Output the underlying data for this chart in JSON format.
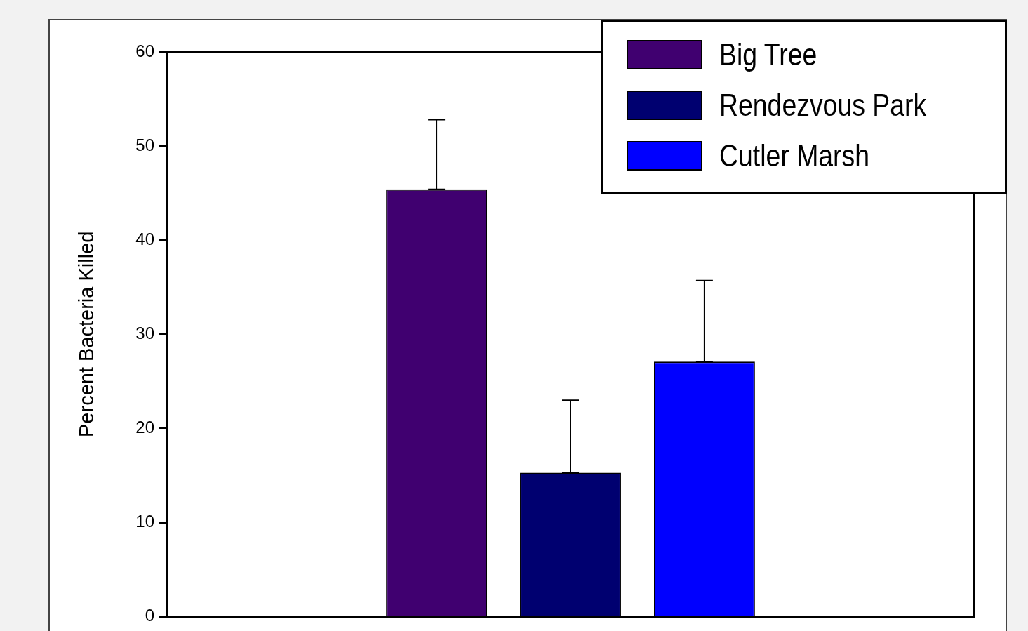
{
  "chart_data": {
    "type": "bar",
    "ylabel": "Percent Bacteria Killed",
    "categories": [
      null
    ],
    "series": [
      {
        "name": "Big Tree",
        "color": "#400070",
        "values": [
          45.4
        ],
        "errors": [
          [
            45.4,
            52.8
          ]
        ]
      },
      {
        "name": "Rendezvous Park",
        "color": "#000070",
        "values": [
          15.3
        ],
        "errors": [
          [
            15.3,
            23.0
          ]
        ]
      },
      {
        "name": "Cutler Marsh",
        "color": "#0000ff",
        "values": [
          27.1
        ],
        "errors": [
          [
            27.1,
            35.7
          ]
        ]
      }
    ],
    "ylim": [
      0,
      60
    ],
    "yticks": [
      0,
      10,
      20,
      30,
      40,
      50,
      60
    ],
    "grid": false,
    "legend": "top right",
    "tick_labels": "y"
  }
}
